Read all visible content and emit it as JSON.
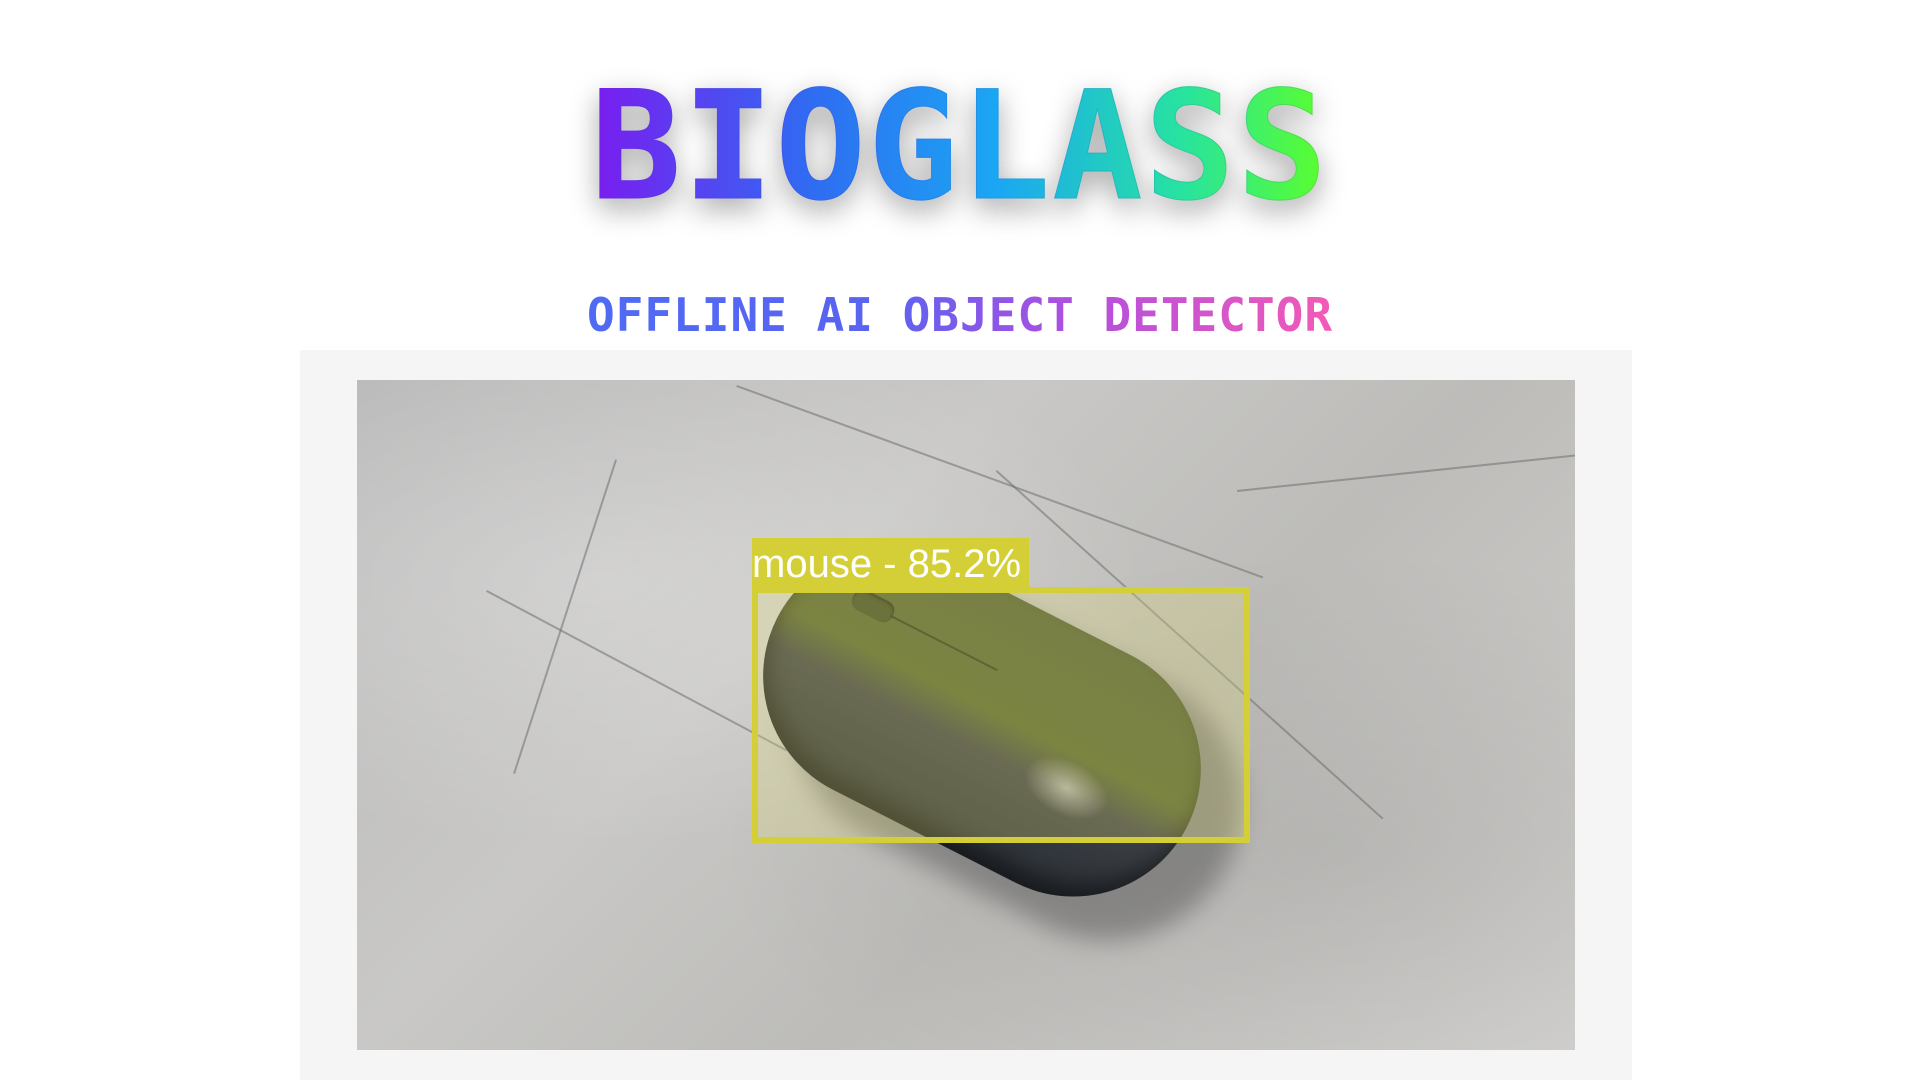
{
  "app": {
    "title": "BIOGLASS",
    "subtitle": "OFFLINE AI OBJECT DETECTOR"
  },
  "detection": {
    "label": "mouse - 85.2%",
    "class": "mouse",
    "confidence": "85.2%",
    "box_color": "#d4cf37"
  },
  "colors": {
    "title_gradient": [
      "#7a1cf0",
      "#1aa7f3",
      "#5cff2a"
    ],
    "subtitle_gradient": [
      "#4f6bf4",
      "#b04fe0",
      "#f35ab6"
    ]
  }
}
